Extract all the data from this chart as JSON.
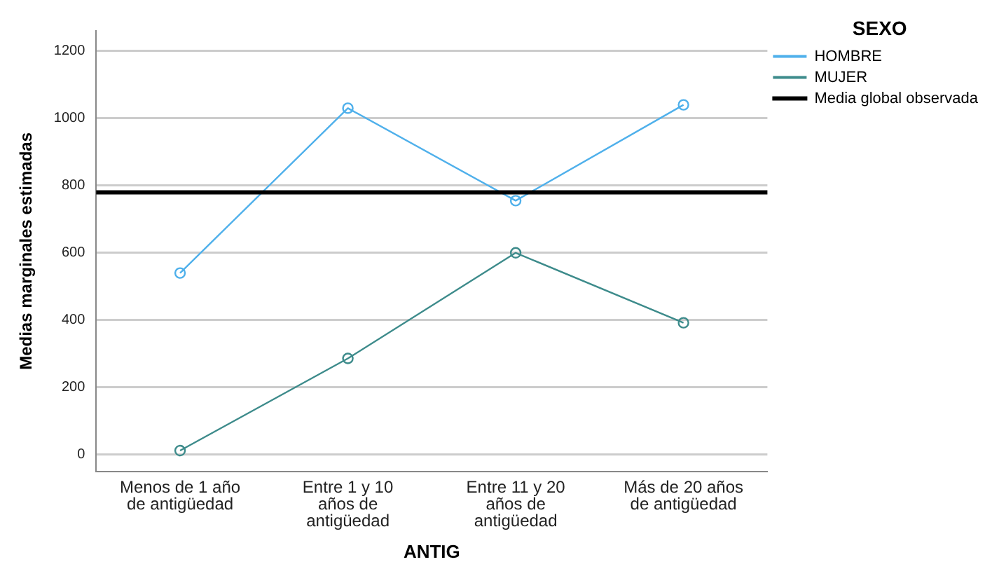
{
  "chart_data": {
    "type": "line",
    "xlabel": "ANTIG",
    "ylabel": "Medias marginales estimadas",
    "legend_title": "SEXO",
    "categories": [
      [
        "Menos de 1 año",
        "de antigüedad"
      ],
      [
        "Entre 1 y 10",
        "años de",
        "antigüedad"
      ],
      [
        "Entre 11 y 20",
        "años de",
        "antigüedad"
      ],
      [
        "Más de 20 años",
        "de antigüedad"
      ]
    ],
    "series": [
      {
        "name": "HOMBRE",
        "color": "#4fb0eb",
        "values": [
          540,
          1030,
          755,
          1040
        ]
      },
      {
        "name": "MUJER",
        "color": "#3d8b8b",
        "values": [
          12,
          286,
          600,
          392
        ]
      }
    ],
    "ref_lines": [
      {
        "axis": "y",
        "value": 780,
        "label": "Media global observada",
        "color": "#000000"
      }
    ],
    "ylim": [
      -50,
      1260
    ],
    "yticks": [
      0,
      200,
      400,
      600,
      800,
      1000,
      1200
    ],
    "grid": "y",
    "legend": "top right",
    "marker": "circle",
    "line_style": "solid"
  }
}
